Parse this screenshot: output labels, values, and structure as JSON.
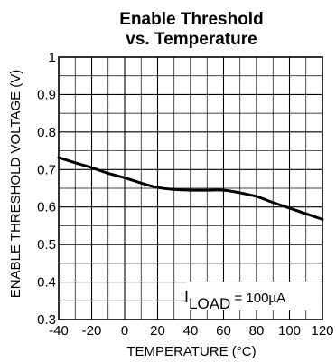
{
  "chart_data": {
    "type": "line",
    "title_line1": "Enable Threshold",
    "title_line2": "vs. Temperature",
    "xlabel": "TEMPERATURE (°C)",
    "ylabel": "ENABLE THRESHOLD VOLTAGE (V)",
    "xlim": [
      -40,
      120
    ],
    "ylim": [
      0.3,
      1.0
    ],
    "x_ticks": [
      -40,
      -20,
      0,
      20,
      40,
      60,
      80,
      100,
      120
    ],
    "x_tick_labels": [
      "-40",
      "-20",
      "0",
      "20",
      "40",
      "60",
      "80",
      "100",
      "120"
    ],
    "y_ticks": [
      0.3,
      0.4,
      0.5,
      0.6,
      0.7,
      0.8,
      0.9,
      1.0
    ],
    "y_tick_labels": [
      "0.3",
      "0.4",
      "0.5",
      "0.6",
      "0.7",
      "0.8",
      "0.9",
      "1"
    ],
    "x_minor_step": 10,
    "y_minor_step": 0.05,
    "grid": true,
    "annotation": {
      "main": "I",
      "subscript": "LOAD",
      "suffix": " = 100µA"
    },
    "series": [
      {
        "x": [
          -40,
          -30,
          -20,
          -10,
          0,
          10,
          20,
          30,
          40,
          50,
          60,
          70,
          80,
          90,
          100,
          110,
          120
        ],
        "y": [
          0.732,
          0.718,
          0.705,
          0.69,
          0.678,
          0.664,
          0.652,
          0.647,
          0.645,
          0.645,
          0.645,
          0.638,
          0.628,
          0.612,
          0.597,
          0.582,
          0.567
        ]
      }
    ]
  }
}
